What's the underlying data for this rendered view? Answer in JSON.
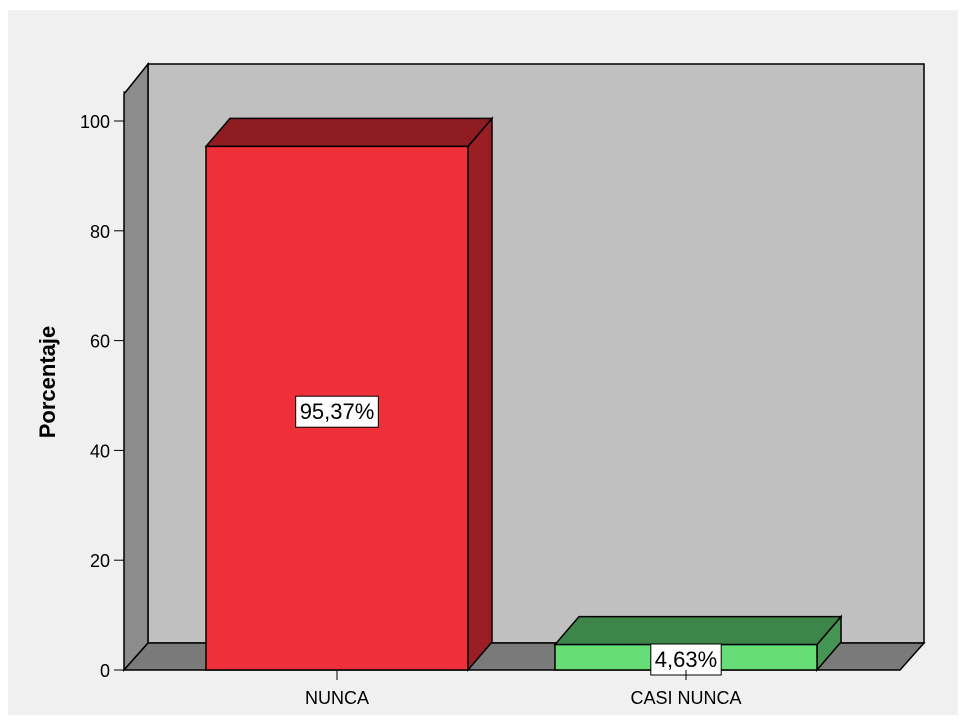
{
  "chart_data": {
    "type": "bar",
    "categories": [
      "NUNCA",
      "CASI NUNCA"
    ],
    "values": [
      95.37,
      4.63
    ],
    "data_labels": [
      "95,37%",
      "4,63%"
    ],
    "ylabel": "Porcentaje",
    "xlabel": "",
    "ylim": [
      0,
      100
    ],
    "y_ticks": [
      0,
      20,
      40,
      60,
      80,
      100
    ],
    "style": "3d",
    "grid": false,
    "colors": {
      "background": "#f0f0f0",
      "plot_back_wall": "#c0c0c0",
      "plot_side_wall": "#8c8c8c",
      "plot_floor": "#7a7a7a",
      "bar_front": [
        "#ef3038",
        "#66dd77"
      ],
      "bar_top": [
        "#8e1c21",
        "#3d8549"
      ],
      "bar_side": [
        "#9b1e24",
        "#479554"
      ]
    }
  }
}
